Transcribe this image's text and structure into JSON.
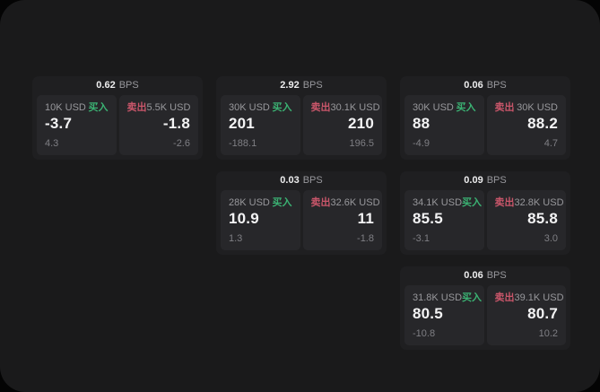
{
  "labels": {
    "buy": "买入",
    "sell": "卖出",
    "bps_unit": "BPS"
  },
  "colors": {
    "page_background": "#1a1a1b",
    "card_background": "#1f1f21",
    "panel_background": "#27272a",
    "buy_green": "#3bb273",
    "sell_red": "#c9566a",
    "value_white": "#f3f3f4",
    "muted_gray": "#98989c"
  },
  "cards": [
    {
      "bps": "0.62",
      "buy": {
        "size": "10K USD",
        "value": "-3.7",
        "sub": "4.3"
      },
      "sell": {
        "size": "5.5K USD",
        "value": "-1.8",
        "sub": "-2.6"
      }
    },
    {
      "bps": "2.92",
      "buy": {
        "size": "30K USD",
        "value": "201",
        "sub": "-188.1"
      },
      "sell": {
        "size": "30.1K USD",
        "value": "210",
        "sub": "196.5"
      }
    },
    {
      "bps": "0.06",
      "buy": {
        "size": "30K USD",
        "value": "88",
        "sub": "-4.9"
      },
      "sell": {
        "size": "30K USD",
        "value": "88.2",
        "sub": "4.7"
      }
    },
    {
      "bps": "0.03",
      "buy": {
        "size": "28K USD",
        "value": "10.9",
        "sub": "1.3"
      },
      "sell": {
        "size": "32.6K USD",
        "value": "11",
        "sub": "-1.8"
      }
    },
    {
      "bps": "0.09",
      "buy": {
        "size": "34.1K USD",
        "value": "85.5",
        "sub": "-3.1"
      },
      "sell": {
        "size": "32.8K USD",
        "value": "85.8",
        "sub": "3.0"
      }
    },
    {
      "bps": "0.06",
      "buy": {
        "size": "31.8K USD",
        "value": "80.5",
        "sub": "-10.8"
      },
      "sell": {
        "size": "39.1K USD",
        "value": "80.7",
        "sub": "10.2"
      }
    }
  ]
}
